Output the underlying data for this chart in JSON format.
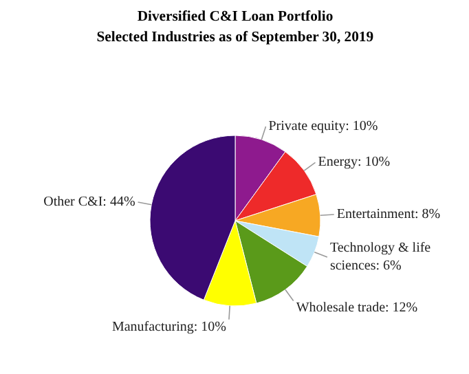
{
  "chart_data": {
    "type": "pie",
    "title": "Diversified C&I Loan Portfolio",
    "subtitle": "Selected Industries as of September 30, 2019",
    "categories": [
      "Private equity: 10%",
      "Energy: 10%",
      "Entertainment: 8%",
      "Technology & life sciences: 6%",
      "Wholesale trade: 12%",
      "Manufacturing: 10%",
      "Other C&I: 44%"
    ],
    "values": [
      10,
      10,
      8,
      6,
      12,
      10,
      44
    ],
    "colors": [
      "#8e1a8e",
      "#ee2a2a",
      "#f7a823",
      "#bfe4f6",
      "#5a9a1a",
      "#ffff00",
      "#3b0a72"
    ]
  }
}
